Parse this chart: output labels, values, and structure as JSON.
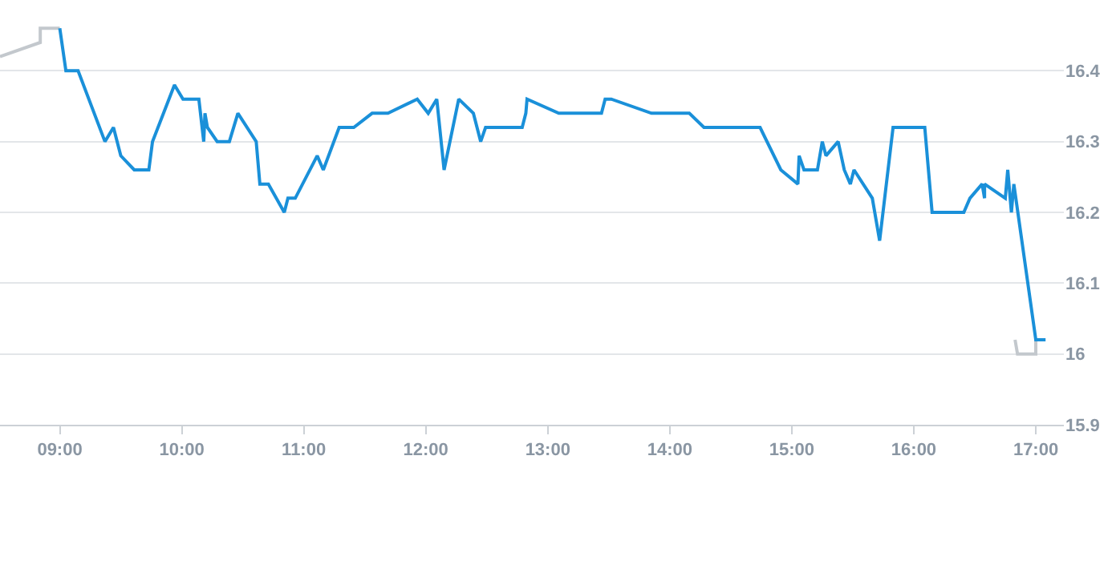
{
  "chart_data": {
    "type": "line",
    "xlim": [
      8.51,
      17.23
    ],
    "ylim": [
      15.9,
      16.5
    ],
    "xticks": [
      {
        "value": 9,
        "label": "09:00"
      },
      {
        "value": 10,
        "label": "10:00"
      },
      {
        "value": 11,
        "label": "11:00"
      },
      {
        "value": 12,
        "label": "12:00"
      },
      {
        "value": 13,
        "label": "13:00"
      },
      {
        "value": 14,
        "label": "14:00"
      },
      {
        "value": 15,
        "label": "15:00"
      },
      {
        "value": 16,
        "label": "16:00"
      },
      {
        "value": 17,
        "label": "17:00"
      }
    ],
    "yticks": [
      15.9,
      16,
      16.1,
      16.2,
      16.3,
      16.4
    ],
    "grid": "y",
    "marker": "none",
    "line_style": "solid",
    "series": [
      {
        "color": "#c3c8cd",
        "x": [
          8.51,
          8.84,
          8.84,
          9.0,
          null,
          16.83,
          16.85,
          17.0,
          17.0
        ],
        "values": [
          16.42,
          16.44,
          16.46,
          16.46,
          null,
          16.02,
          16.0,
          16.0,
          16.02
        ]
      },
      {
        "color": "#1a90d9",
        "x": [
          9.0,
          9.05,
          9.15,
          9.37,
          9.44,
          9.5,
          9.61,
          9.73,
          9.76,
          9.94,
          10.01,
          10.14,
          10.18,
          10.19,
          10.21,
          10.29,
          10.39,
          10.46,
          10.61,
          10.64,
          10.71,
          10.84,
          10.87,
          10.93,
          11.11,
          11.16,
          11.29,
          11.41,
          11.56,
          11.69,
          11.93,
          12.02,
          12.09,
          12.15,
          12.27,
          12.39,
          12.45,
          12.49,
          12.79,
          12.82,
          12.83,
          13.09,
          13.44,
          13.47,
          13.52,
          13.85,
          14.16,
          14.28,
          14.74,
          14.91,
          15.05,
          15.06,
          15.1,
          15.21,
          15.25,
          15.28,
          15.38,
          15.43,
          15.48,
          15.51,
          15.66,
          15.72,
          15.83,
          16.09,
          16.15,
          16.41,
          16.46,
          16.56,
          16.58,
          16.58,
          16.75,
          16.77,
          16.8,
          16.82,
          17.0,
          17.08
        ],
        "values": [
          16.46,
          16.4,
          16.4,
          16.3,
          16.32,
          16.28,
          16.26,
          16.26,
          16.3,
          16.38,
          16.36,
          16.36,
          16.3,
          16.34,
          16.32,
          16.3,
          16.3,
          16.34,
          16.3,
          16.24,
          16.24,
          16.2,
          16.22,
          16.22,
          16.28,
          16.26,
          16.32,
          16.32,
          16.34,
          16.34,
          16.36,
          16.34,
          16.36,
          16.26,
          16.36,
          16.34,
          16.3,
          16.32,
          16.32,
          16.34,
          16.36,
          16.34,
          16.34,
          16.36,
          16.36,
          16.34,
          16.34,
          16.32,
          16.32,
          16.26,
          16.24,
          16.28,
          16.26,
          16.26,
          16.3,
          16.28,
          16.3,
          16.26,
          16.24,
          16.26,
          16.22,
          16.16,
          16.32,
          16.32,
          16.2,
          16.2,
          16.22,
          16.24,
          16.22,
          16.24,
          16.22,
          16.26,
          16.2,
          16.24,
          16.02,
          16.02
        ]
      }
    ]
  }
}
